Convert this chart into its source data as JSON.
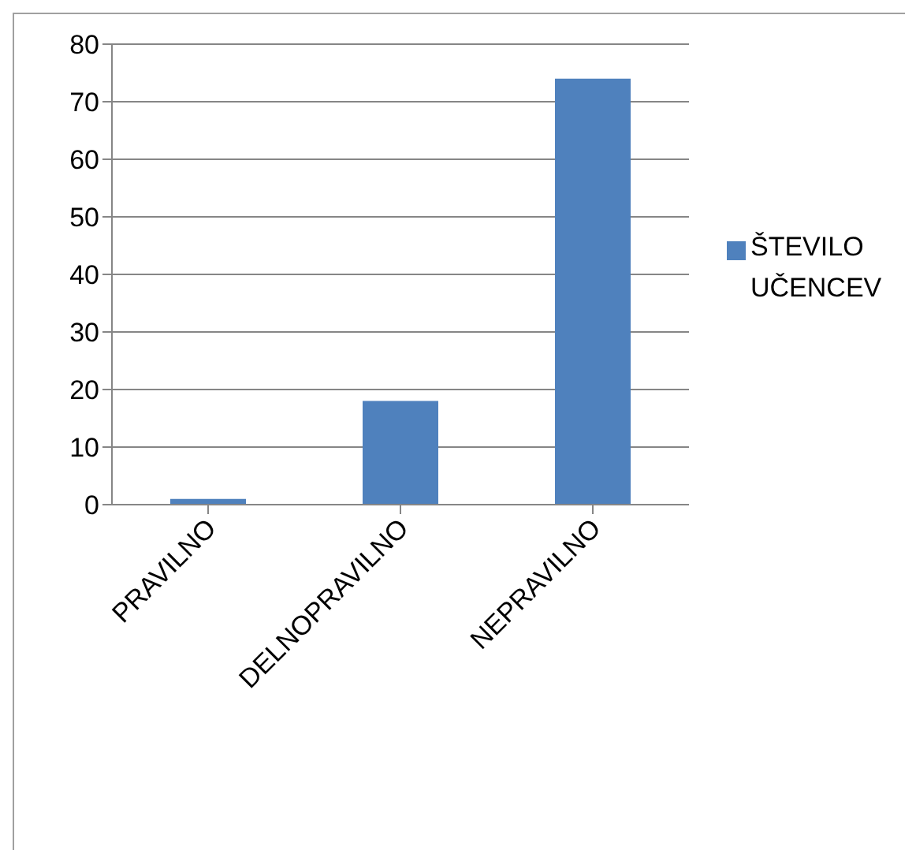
{
  "chart_data": {
    "type": "bar",
    "categories": [
      "PRAVILNO",
      "DELNOPRAVILNO",
      "NEPRAVILNO"
    ],
    "series": [
      {
        "name": "ŠTEVILO UČENCEV",
        "color": "#4f81bd",
        "values": [
          1,
          18,
          74
        ]
      }
    ],
    "ylim": [
      0,
      80
    ],
    "yticks": [
      0,
      10,
      20,
      30,
      40,
      50,
      60,
      70,
      80
    ],
    "grid": "y",
    "legend": "right"
  }
}
